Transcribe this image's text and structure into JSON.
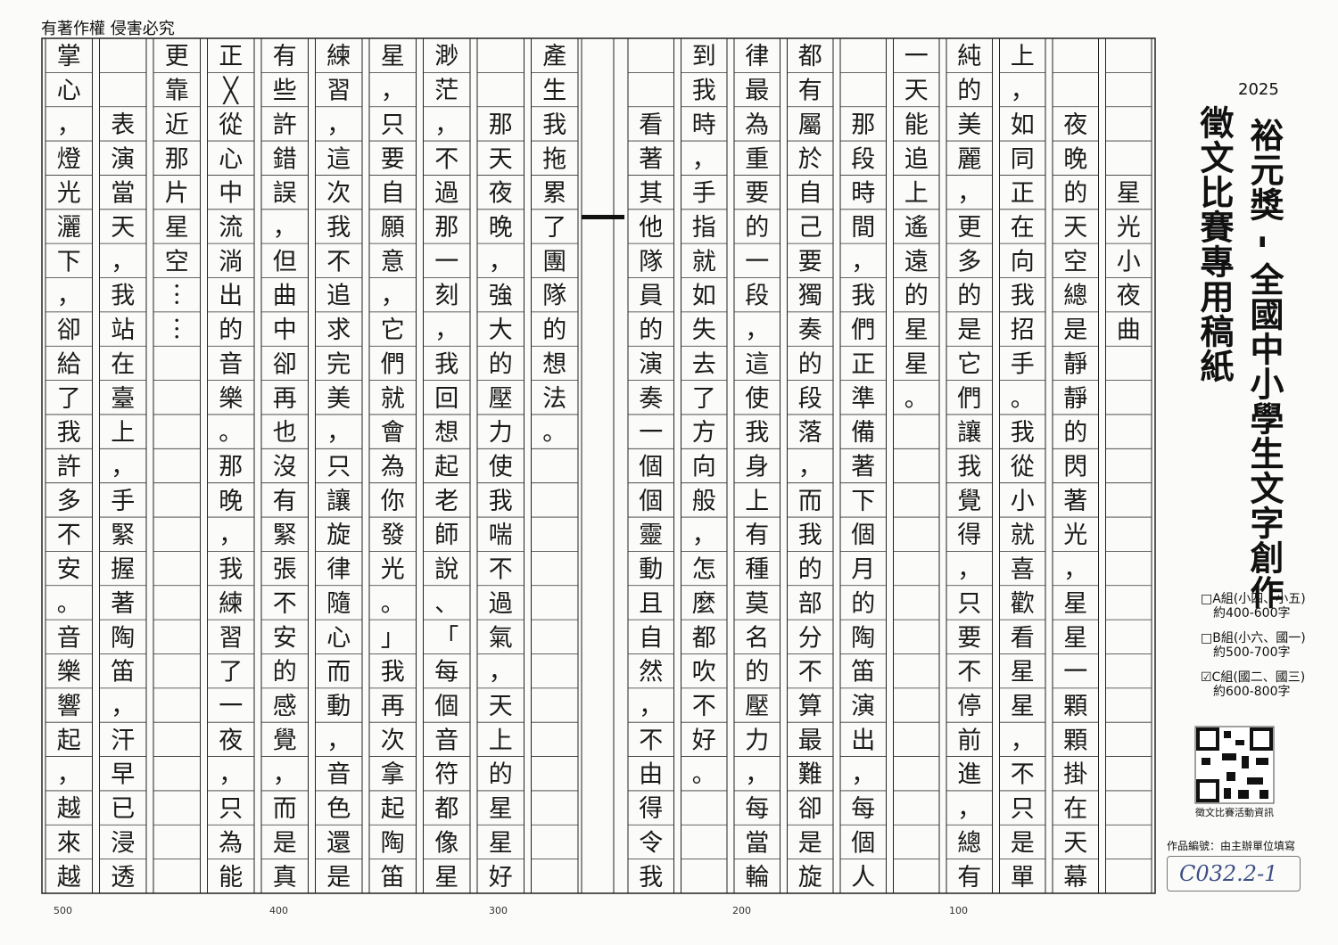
{
  "header": {
    "notice": "有著作權 侵害必究"
  },
  "sheet": {
    "year": "2025",
    "title": "裕元獎 - 全國中小學生文字創作",
    "subtitle": "徵文比賽專用稿紙",
    "groups": [
      {
        "label": "□A組(小四、小五)",
        "range": "約400-600字"
      },
      {
        "label": "□B組(小六、國一)",
        "range": "約500-700字"
      },
      {
        "label": "☑C組(國二、國三)",
        "range": "約600-800字"
      }
    ],
    "qr_caption": "徵文比賽活動資訊",
    "id_label": "作品編號：由主辦單位填寫",
    "id_value": "C032.2-1"
  },
  "counters": [
    500,
    400,
    300,
    200,
    100
  ],
  "essay": {
    "columns": [
      [
        null,
        null,
        null,
        null,
        "星",
        "光",
        "小",
        "夜",
        "曲",
        null,
        null,
        null,
        null,
        null,
        null,
        null,
        null,
        null,
        null,
        null,
        null,
        null,
        null,
        null,
        null
      ],
      [
        null,
        null,
        "夜",
        "晚",
        "的",
        "天",
        "空",
        "總",
        "是",
        "靜",
        "靜",
        "的",
        "閃",
        "著",
        "光",
        "，",
        "星",
        "星",
        "一",
        "顆",
        "顆",
        "掛",
        "在",
        "天",
        "幕"
      ],
      [
        "上",
        "，",
        "如",
        "同",
        "正",
        "在",
        "向",
        "我",
        "招",
        "手",
        "。",
        "我",
        "從",
        "小",
        "就",
        "喜",
        "歡",
        "看",
        "星",
        "星",
        "，",
        "不",
        "只",
        "是",
        "單"
      ],
      [
        "純",
        "的",
        "美",
        "麗",
        "，",
        "更",
        "多",
        "的",
        "是",
        "它",
        "們",
        "讓",
        "我",
        "覺",
        "得",
        "，",
        "只",
        "要",
        "不",
        "停",
        "前",
        "進",
        "，",
        "總",
        "有"
      ],
      [
        "一",
        "天",
        "能",
        "追",
        "上",
        "遙",
        "遠",
        "的",
        "星",
        "星",
        "。",
        null,
        null,
        null,
        null,
        null,
        null,
        null,
        null,
        null,
        null,
        null,
        null,
        null,
        null
      ],
      [
        null,
        null,
        "那",
        "段",
        "時",
        "間",
        "，",
        "我",
        "們",
        "正",
        "準",
        "備",
        "著",
        "下",
        "個",
        "月",
        "的",
        "陶",
        "笛",
        "演",
        "出",
        "，",
        "每",
        "個",
        "人"
      ],
      [
        "都",
        "有",
        "屬",
        "於",
        "自",
        "己",
        "要",
        "獨",
        "奏",
        "的",
        "段",
        "落",
        "，",
        "而",
        "我",
        "的",
        "部",
        "分",
        "不",
        "算",
        "最",
        "難",
        "卻",
        "是",
        "旋"
      ],
      [
        "律",
        "最",
        "為",
        "重",
        "要",
        "的",
        "一",
        "段",
        "，",
        "這",
        "使",
        "我",
        "身",
        "上",
        "有",
        "種",
        "莫",
        "名",
        "的",
        "壓",
        "力",
        "，",
        "每",
        "當",
        "輪"
      ],
      [
        "到",
        "我",
        "時",
        "，",
        "手",
        "指",
        "就",
        "如",
        "失",
        "去",
        "了",
        "方",
        "向",
        "般",
        "，",
        "怎",
        "麼",
        "都",
        "吹",
        "不",
        "好",
        "。",
        null,
        null,
        null
      ],
      [
        null,
        null,
        "看",
        "著",
        "其",
        "他",
        "隊",
        "員",
        "的",
        "演",
        "奏",
        "一",
        "個",
        "個",
        "靈",
        "動",
        "且",
        "自",
        "然",
        "，",
        "不",
        "由",
        "得",
        "令",
        "我"
      ],
      [
        "產",
        "生",
        "我",
        "拖",
        "累",
        "了",
        "團",
        "隊",
        "的",
        "想",
        "法",
        "。",
        null,
        null,
        null,
        null,
        null,
        null,
        null,
        null,
        null,
        null,
        null,
        null,
        null
      ],
      [
        null,
        null,
        "那",
        "天",
        "夜",
        "晚",
        "，",
        "強",
        "大",
        "的",
        "壓",
        "力",
        "使",
        "我",
        "喘",
        "不",
        "過",
        "氣",
        "，",
        "天",
        "上",
        "的",
        "星",
        "星",
        "好"
      ],
      [
        "渺",
        "茫",
        "，",
        "不",
        "過",
        "那",
        "一",
        "刻",
        "，",
        "我",
        "回",
        "想",
        "起",
        "老",
        "師",
        "說",
        "、",
        "「",
        "每",
        "個",
        "音",
        "符",
        "都",
        "像",
        "星"
      ],
      [
        "星",
        "，",
        "只",
        "要",
        "自",
        "願",
        "意",
        "，",
        "它",
        "們",
        "就",
        "會",
        "為",
        "你",
        "發",
        "光",
        "。",
        "」",
        "我",
        "再",
        "次",
        "拿",
        "起",
        "陶",
        "笛"
      ],
      [
        "練",
        "習",
        "，",
        "這",
        "次",
        "我",
        "不",
        "追",
        "求",
        "完",
        "美",
        "，",
        "只",
        "讓",
        "旋",
        "律",
        "隨",
        "心",
        "而",
        "動",
        "，",
        "音",
        "色",
        "還",
        "是"
      ],
      [
        "有",
        "些",
        "許",
        "錯",
        "誤",
        "，",
        "但",
        "曲",
        "中",
        "卻",
        "再",
        "也",
        "沒",
        "有",
        "緊",
        "張",
        "不",
        "安",
        "的",
        "感",
        "覺",
        "，",
        "而",
        "是",
        "真"
      ],
      [
        "正",
        "╳",
        "從",
        "心",
        "中",
        "流",
        "淌",
        "出",
        "的",
        "音",
        "樂",
        "。",
        "那",
        "晚",
        "，",
        "我",
        "練",
        "習",
        "了",
        "一",
        "夜",
        "，",
        "只",
        "為",
        "能"
      ],
      [
        "更",
        "靠",
        "近",
        "那",
        "片",
        "星",
        "空",
        "︙",
        "︙",
        null,
        null,
        null,
        null,
        null,
        null,
        null,
        null,
        null,
        null,
        null,
        null,
        null,
        null,
        null,
        null
      ],
      [
        null,
        null,
        "表",
        "演",
        "當",
        "天",
        "，",
        "我",
        "站",
        "在",
        "臺",
        "上",
        "，",
        "手",
        "緊",
        "握",
        "著",
        "陶",
        "笛",
        "，",
        "汗",
        "早",
        "已",
        "浸",
        "透"
      ],
      [
        "掌",
        "心",
        "，",
        "燈",
        "光",
        "灑",
        "下",
        "，",
        "卻",
        "給",
        "了",
        "我",
        "許",
        "多",
        "不",
        "安",
        "。",
        "音",
        "樂",
        "響",
        "起",
        "，",
        "越",
        "來",
        "越"
      ]
    ]
  }
}
